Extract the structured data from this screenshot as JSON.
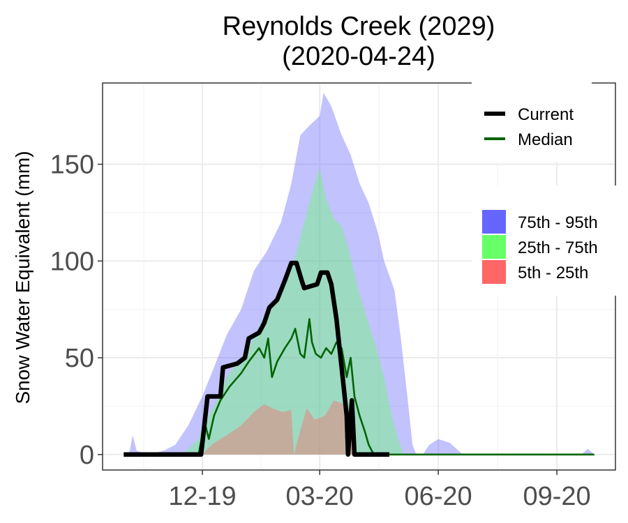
{
  "chart_data": {
    "type": "area",
    "title": "Reynolds Creek (2029)",
    "subtitle": "(2020-04-24)",
    "ylabel": "Snow Water Equivalent (mm)",
    "xlabel": "",
    "x_domain": [
      "2019-10-01",
      "2020-09-30"
    ],
    "ylim": [
      -8,
      192
    ],
    "y_ticks": [
      0,
      50,
      100,
      150
    ],
    "x_ticks": [
      {
        "date": "2019-12-01",
        "label": "12-19"
      },
      {
        "date": "2020-03-01",
        "label": "03-20"
      },
      {
        "date": "2020-06-01",
        "label": "06-20"
      },
      {
        "date": "2020-09-01",
        "label": "09-20"
      }
    ],
    "grid": true,
    "legend_lines": [
      {
        "name": "Current",
        "color": "#000000"
      },
      {
        "name": "Median",
        "color": "#006400"
      }
    ],
    "legend_bands": [
      {
        "name": "75th - 95th",
        "color": "#6666ff"
      },
      {
        "name": "25th - 75th",
        "color": "#66ff66"
      },
      {
        "name": "5th - 25th",
        "color": "#ff6666"
      }
    ],
    "bands": {
      "p5_p25": {
        "color": "#ff6666",
        "points": [
          [
            "2019-12-01",
            0
          ],
          [
            "2019-12-05",
            3
          ],
          [
            "2019-12-10",
            6
          ],
          [
            "2019-12-20",
            10
          ],
          [
            "2019-12-31",
            15
          ],
          [
            "2020-01-10",
            22
          ],
          [
            "2020-01-18",
            26
          ],
          [
            "2020-01-24",
            24
          ],
          [
            "2020-02-01",
            22
          ],
          [
            "2020-02-08",
            23
          ],
          [
            "2020-02-10",
            0
          ],
          [
            "2020-02-16",
            15
          ],
          [
            "2020-02-20",
            24
          ],
          [
            "2020-02-26",
            18
          ],
          [
            "2020-03-05",
            20
          ],
          [
            "2020-03-12",
            28
          ],
          [
            "2020-03-20",
            26
          ],
          [
            "2020-03-26",
            8
          ],
          [
            "2020-03-30",
            0
          ]
        ]
      },
      "p25_p75": {
        "color": "#66ff66",
        "points": [
          [
            "2019-11-15",
            0
          ],
          [
            "2019-11-20",
            3
          ],
          [
            "2019-11-28",
            8
          ],
          [
            "2019-12-01",
            15
          ],
          [
            "2019-12-10",
            25
          ],
          [
            "2019-12-20",
            40
          ],
          [
            "2019-12-31",
            50
          ],
          [
            "2020-01-10",
            60
          ],
          [
            "2020-01-20",
            75
          ],
          [
            "2020-01-31",
            85
          ],
          [
            "2020-02-10",
            100
          ],
          [
            "2020-02-20",
            125
          ],
          [
            "2020-02-26",
            140
          ],
          [
            "2020-03-01",
            148
          ],
          [
            "2020-03-06",
            132
          ],
          [
            "2020-03-12",
            122
          ],
          [
            "2020-03-18",
            118
          ],
          [
            "2020-03-24",
            105
          ],
          [
            "2020-03-31",
            85
          ],
          [
            "2020-04-07",
            70
          ],
          [
            "2020-04-14",
            55
          ],
          [
            "2020-04-20",
            40
          ],
          [
            "2020-04-26",
            20
          ],
          [
            "2020-05-01",
            8
          ],
          [
            "2020-05-05",
            0
          ]
        ]
      },
      "p75_p95": {
        "color": "#6666ff",
        "points": [
          [
            "2019-10-05",
            0
          ],
          [
            "2019-10-08",
            10
          ],
          [
            "2019-10-11",
            2
          ],
          [
            "2019-10-20",
            0
          ],
          [
            "2019-11-01",
            2
          ],
          [
            "2019-11-10",
            5
          ],
          [
            "2019-11-20",
            15
          ],
          [
            "2019-12-01",
            30
          ],
          [
            "2019-12-10",
            45
          ],
          [
            "2019-12-20",
            62
          ],
          [
            "2019-12-31",
            75
          ],
          [
            "2020-01-10",
            95
          ],
          [
            "2020-01-20",
            105
          ],
          [
            "2020-01-31",
            120
          ],
          [
            "2020-02-08",
            140
          ],
          [
            "2020-02-15",
            165
          ],
          [
            "2020-02-22",
            170
          ],
          [
            "2020-03-01",
            175
          ],
          [
            "2020-03-04",
            187
          ],
          [
            "2020-03-10",
            180
          ],
          [
            "2020-03-18",
            165
          ],
          [
            "2020-03-25",
            155
          ],
          [
            "2020-04-01",
            140
          ],
          [
            "2020-04-08",
            130
          ],
          [
            "2020-04-15",
            115
          ],
          [
            "2020-04-20",
            100
          ],
          [
            "2020-04-28",
            85
          ],
          [
            "2020-05-03",
            60
          ],
          [
            "2020-05-08",
            30
          ],
          [
            "2020-05-12",
            5
          ],
          [
            "2020-05-15",
            0
          ],
          [
            "2020-05-20",
            0
          ],
          [
            "2020-05-25",
            5
          ],
          [
            "2020-06-01",
            8
          ],
          [
            "2020-06-10",
            6
          ],
          [
            "2020-06-15",
            3
          ],
          [
            "2020-06-20",
            0
          ],
          [
            "2020-09-20",
            0
          ],
          [
            "2020-09-25",
            3
          ],
          [
            "2020-09-30",
            0
          ]
        ]
      }
    },
    "series": [
      {
        "name": "Current",
        "color": "#000000",
        "points": [
          [
            "2019-10-01",
            0
          ],
          [
            "2019-11-30",
            0
          ],
          [
            "2019-12-02",
            12
          ],
          [
            "2019-12-05",
            30
          ],
          [
            "2019-12-15",
            30
          ],
          [
            "2019-12-17",
            45
          ],
          [
            "2019-12-28",
            47
          ],
          [
            "2020-01-03",
            50
          ],
          [
            "2020-01-06",
            60
          ],
          [
            "2020-01-14",
            63
          ],
          [
            "2020-01-18",
            68
          ],
          [
            "2020-01-22",
            76
          ],
          [
            "2020-01-28",
            80
          ],
          [
            "2020-02-03",
            90
          ],
          [
            "2020-02-08",
            99
          ],
          [
            "2020-02-12",
            99
          ],
          [
            "2020-02-16",
            90
          ],
          [
            "2020-02-18",
            86
          ],
          [
            "2020-02-28",
            88
          ],
          [
            "2020-03-02",
            94
          ],
          [
            "2020-03-07",
            94
          ],
          [
            "2020-03-10",
            88
          ],
          [
            "2020-03-14",
            70
          ],
          [
            "2020-03-18",
            45
          ],
          [
            "2020-03-22",
            20
          ],
          [
            "2020-03-23",
            0
          ],
          [
            "2020-03-26",
            28
          ],
          [
            "2020-03-28",
            0
          ],
          [
            "2020-04-24",
            0
          ]
        ]
      },
      {
        "name": "Median",
        "color": "#006400",
        "points": [
          [
            "2019-10-01",
            0
          ],
          [
            "2019-11-28",
            0
          ],
          [
            "2019-12-01",
            10
          ],
          [
            "2019-12-03",
            16
          ],
          [
            "2019-12-06",
            8
          ],
          [
            "2019-12-10",
            20
          ],
          [
            "2019-12-15",
            28
          ],
          [
            "2019-12-22",
            35
          ],
          [
            "2019-12-31",
            42
          ],
          [
            "2020-01-06",
            48
          ],
          [
            "2020-01-14",
            55
          ],
          [
            "2020-01-18",
            50
          ],
          [
            "2020-01-21",
            60
          ],
          [
            "2020-01-24",
            40
          ],
          [
            "2020-01-28",
            48
          ],
          [
            "2020-02-03",
            55
          ],
          [
            "2020-02-08",
            60
          ],
          [
            "2020-02-11",
            65
          ],
          [
            "2020-02-15",
            52
          ],
          [
            "2020-02-18",
            50
          ],
          [
            "2020-02-20",
            60
          ],
          [
            "2020-02-22",
            70
          ],
          [
            "2020-02-24",
            58
          ],
          [
            "2020-02-27",
            52
          ],
          [
            "2020-03-02",
            50
          ],
          [
            "2020-03-06",
            55
          ],
          [
            "2020-03-10",
            52
          ],
          [
            "2020-03-14",
            58
          ],
          [
            "2020-03-18",
            55
          ],
          [
            "2020-03-22",
            40
          ],
          [
            "2020-03-25",
            50
          ],
          [
            "2020-03-28",
            30
          ],
          [
            "2020-04-01",
            20
          ],
          [
            "2020-04-05",
            12
          ],
          [
            "2020-04-08",
            5
          ],
          [
            "2020-04-12",
            0
          ],
          [
            "2020-09-30",
            0
          ]
        ]
      }
    ]
  }
}
